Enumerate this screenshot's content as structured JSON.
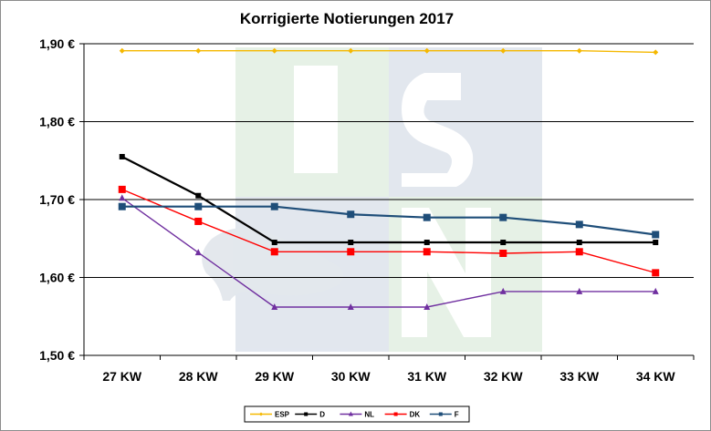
{
  "chart_data": {
    "type": "line",
    "title": "Korrigierte Notierungen 2017",
    "xlabel": "",
    "ylabel": "",
    "categories": [
      "27 KW",
      "28 KW",
      "29 KW",
      "30 KW",
      "31 KW",
      "32 KW",
      "33 KW",
      "34 KW"
    ],
    "ylim": [
      1.5,
      1.9
    ],
    "yticks": [
      1.5,
      1.6,
      1.7,
      1.8,
      1.9
    ],
    "ytick_labels": [
      "1,50 €",
      "1,60 €",
      "1,70 €",
      "1,80 €",
      "1,90 €"
    ],
    "grid": true,
    "legend_position": "bottom",
    "series": [
      {
        "name": "ESP",
        "color": "#f5b800",
        "marker": "diamond",
        "values": [
          1.891,
          1.891,
          1.891,
          1.891,
          1.891,
          1.891,
          1.891,
          1.889
        ]
      },
      {
        "name": "D",
        "color": "#000000",
        "marker": "square",
        "values": [
          1.755,
          1.705,
          1.645,
          1.645,
          1.645,
          1.645,
          1.645,
          1.645
        ]
      },
      {
        "name": "NL",
        "color": "#7030a0",
        "marker": "triangle",
        "values": [
          1.702,
          1.632,
          1.562,
          1.562,
          1.562,
          1.582,
          1.582,
          1.582
        ]
      },
      {
        "name": "DK",
        "color": "#ff0000",
        "marker": "square",
        "values": [
          1.713,
          1.672,
          1.633,
          1.633,
          1.633,
          1.631,
          1.633,
          1.606
        ]
      },
      {
        "name": "F",
        "color": "#1f4e79",
        "marker": "square",
        "values": [
          1.691,
          1.691,
          1.691,
          1.681,
          1.677,
          1.677,
          1.668,
          1.655
        ]
      }
    ]
  }
}
